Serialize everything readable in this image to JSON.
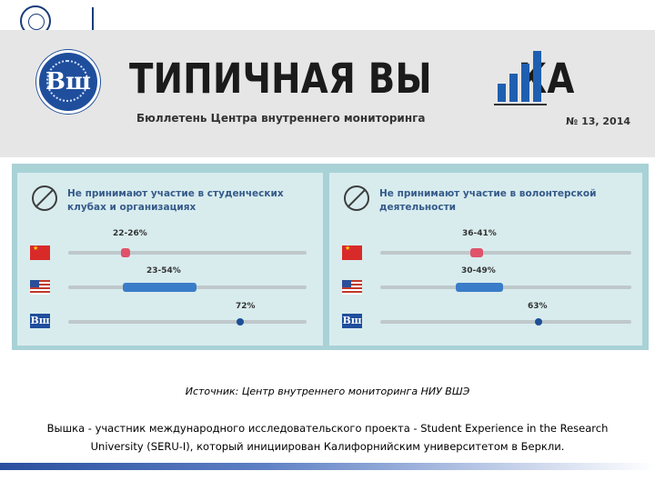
{
  "masthead": {
    "title_part1": "ТИПИЧНАЯ ВЫ",
    "title_part2": "КА",
    "subtitle": "Бюллетень Центра внутреннего мониторинга",
    "issue": "№ 13, 2014",
    "emblem_letter": "Вш",
    "bar_icon_values": [
      0.35,
      0.55,
      0.75,
      1.0
    ],
    "brand_color": "#1f4e9c"
  },
  "infographic": {
    "left": {
      "heading": "Не принимают участие в студенческих клубах и организациях",
      "rows": [
        {
          "flag": "china",
          "label": "22-26%",
          "range": [
            22,
            26
          ]
        },
        {
          "flag": "usa",
          "label": "23-54%",
          "range": [
            23,
            54
          ]
        },
        {
          "flag": "hse",
          "label": "72%",
          "value": 72
        }
      ]
    },
    "right": {
      "heading": "Не принимают участие в волонтерской деятельности",
      "rows": [
        {
          "flag": "china",
          "label": "36-41%",
          "range": [
            36,
            41
          ]
        },
        {
          "flag": "usa",
          "label": "30-49%",
          "range": [
            30,
            49
          ]
        },
        {
          "flag": "hse",
          "label": "63%",
          "value": 63
        }
      ]
    },
    "colors": {
      "background": "#a9d2d6",
      "panel": "#d8ecee",
      "china_bar": "#e0526a",
      "us_bar": "#3a7cc8",
      "hse_dot": "#1d4f96"
    }
  },
  "source": "Источник: Центр внутреннего мониторинга НИУ ВШЭ",
  "description": "Вышка - участник международного исследовательского проекта - Student Experience in the Research University (SERU-I), который инициирован Калифорнийским университетом в Беркли."
}
